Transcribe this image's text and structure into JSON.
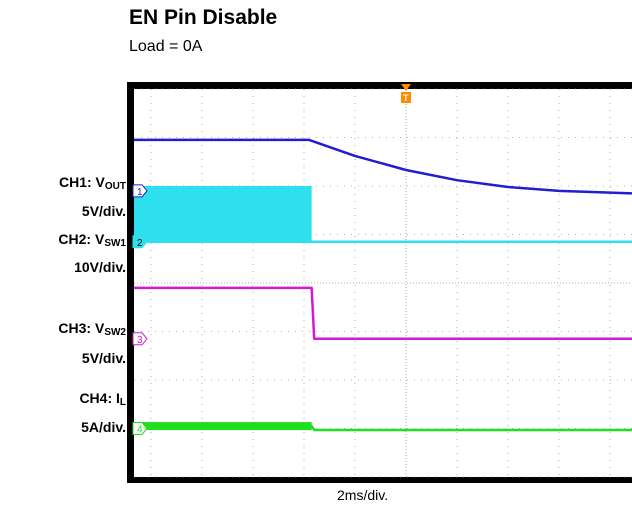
{
  "chart_data": {
    "type": "line",
    "title": "EN Pin Disable",
    "subtitle": "Load = 0A",
    "xlabel": "2ms/div.",
    "ylabel": "",
    "grid": true,
    "legend_position": "left",
    "x_divisions": 10,
    "y_divisions": 8,
    "trigger_marker": "T",
    "trigger_time_div": 5,
    "x_unit": "div",
    "series": [
      {
        "name": "CH1",
        "label_prefix": "CH1: V",
        "label_sub": "OUT",
        "scale": "5V/div.",
        "marker": "1",
        "color": "#1f1fcf",
        "marker_level_div": 5.9,
        "points": [
          [
            0,
            6.95
          ],
          [
            3.1,
            6.95
          ],
          [
            4,
            6.62
          ],
          [
            5,
            6.33
          ],
          [
            6,
            6.12
          ],
          [
            7,
            5.98
          ],
          [
            8,
            5.9
          ],
          [
            10,
            5.84
          ]
        ]
      },
      {
        "name": "CH2",
        "label_prefix": "CH2: V",
        "label_sub": "SW1",
        "scale": "10V/div.",
        "marker": "2",
        "color": "#2ee0ee",
        "marker_level_div": 4.85,
        "burst_until_div": 3.15,
        "burst_high_div": 6.0,
        "points": [
          [
            0,
            4.85
          ],
          [
            10,
            4.85
          ]
        ]
      },
      {
        "name": "CH3",
        "label_prefix": "CH3: V",
        "label_sub": "SW2",
        "scale": "5V/div.",
        "marker": "3",
        "color": "#d21ad2",
        "marker_level_div": 2.85,
        "points": [
          [
            0,
            3.9
          ],
          [
            3.15,
            3.9
          ],
          [
            3.2,
            2.85
          ],
          [
            10,
            2.85
          ]
        ]
      },
      {
        "name": "CH4",
        "label_prefix": "CH4: I",
        "label_sub": "L",
        "scale": "5A/div.",
        "marker": "4",
        "color": "#1ee01e",
        "marker_level_div": 1.0,
        "noise_until_div": 3.15,
        "points": [
          [
            0,
            1.05
          ],
          [
            3.15,
            1.05
          ],
          [
            3.2,
            0.97
          ],
          [
            10,
            0.97
          ]
        ]
      }
    ]
  }
}
